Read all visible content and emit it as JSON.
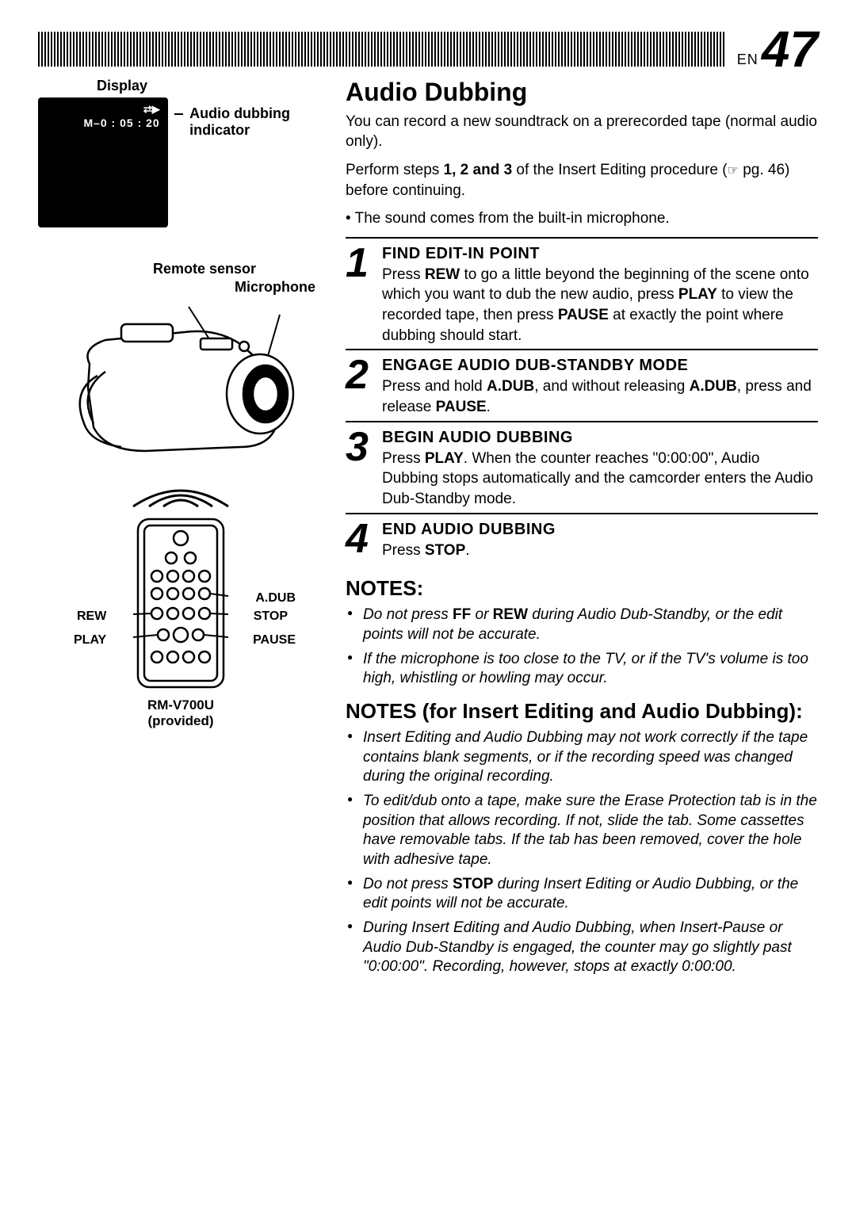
{
  "page": {
    "lang": "EN",
    "number": "47"
  },
  "left": {
    "display_label": "Display",
    "counter": "M–0 : 05 : 20",
    "dub_indicator_icons": "⇄▶",
    "dub_indicator_label": "Audio dubbing indicator",
    "remote_sensor_label": "Remote sensor",
    "microphone_label": "Microphone",
    "remote_labels": {
      "adub": "A.DUB",
      "stop": "STOP",
      "pause": "PAUSE",
      "rew": "REW",
      "play": "PLAY"
    },
    "remote_model": "RM-V700U",
    "remote_provided": "(provided)"
  },
  "right": {
    "title": "Audio Dubbing",
    "intro": "You can record a new soundtrack on a prerecorded tape (normal audio only).",
    "perform_prefix": "Perform steps ",
    "perform_steps": "1, 2 and 3",
    "perform_suffix": " of the Insert Editing procedure (",
    "perform_pg": " pg. 46) before continuing.",
    "bullet_sound": "• The sound comes from the built-in microphone.",
    "steps": [
      {
        "num": "1",
        "title": "FIND EDIT-IN POINT",
        "body_pre": "Press ",
        "b1": "REW",
        "body_mid1": " to go a little beyond the beginning of the scene onto which you want to dub the new audio, press ",
        "b2": "PLAY",
        "body_mid2": " to view the recorded tape, then press ",
        "b3": "PAUSE",
        "body_end": " at exactly the point where dubbing should start."
      },
      {
        "num": "2",
        "title": "ENGAGE AUDIO DUB-STANDBY MODE",
        "body_pre": "Press and hold ",
        "b1": "A.DUB",
        "body_mid1": ", and without releasing ",
        "b2": "A.DUB",
        "body_mid2": ", press and release ",
        "b3": "PAUSE",
        "body_end": "."
      },
      {
        "num": "3",
        "title": "BEGIN AUDIO DUBBING",
        "body_pre": "Press ",
        "b1": "PLAY",
        "body_mid1": ". When the counter reaches \"0:00:00\", Audio Dubbing stops automatically and the camcorder enters the Audio Dub-Standby mode.",
        "b2": "",
        "body_mid2": "",
        "b3": "",
        "body_end": ""
      },
      {
        "num": "4",
        "title": "END AUDIO DUBBING",
        "body_pre": "Press ",
        "b1": "STOP",
        "body_mid1": ".",
        "b2": "",
        "body_mid2": "",
        "b3": "",
        "body_end": ""
      }
    ],
    "notes_title": "NOTES:",
    "notes": [
      {
        "pre": "Do not press ",
        "b1": "FF",
        "mid": " or ",
        "b2": "REW",
        "post": " during Audio Dub-Standby, or the edit points will not be accurate."
      },
      {
        "pre": "If the microphone is too close to the TV, or if the TV's volume is too high, whistling or howling may occur.",
        "b1": "",
        "mid": "",
        "b2": "",
        "post": ""
      }
    ],
    "notes2_title": "NOTES (for Insert Editing and Audio Dubbing):",
    "notes2": [
      {
        "pre": "Insert Editing and Audio Dubbing may not work correctly if the tape contains blank segments, or if the recording speed was changed during the original recording.",
        "b1": "",
        "mid": "",
        "b2": "",
        "post": ""
      },
      {
        "pre": "To edit/dub onto a tape, make sure the Erase Protection tab is in the position that allows recording. If not, slide the tab. Some cassettes have removable tabs. If the tab has been removed, cover the hole with adhesive tape.",
        "b1": "",
        "mid": "",
        "b2": "",
        "post": ""
      },
      {
        "pre": "Do not press ",
        "b1": "STOP",
        "mid": " during Insert Editing or Audio Dubbing, or the edit points will not be accurate.",
        "b2": "",
        "post": ""
      },
      {
        "pre": "During Insert Editing and Audio Dubbing, when Insert-Pause or Audio Dub-Standby is engaged, the counter may go slightly past \"0:00:00\". Recording, however, stops at exactly 0:00:00.",
        "b1": "",
        "mid": "",
        "b2": "",
        "post": ""
      }
    ]
  },
  "style": {
    "page_bg": "#ffffff",
    "text_color": "#000000",
    "header_bar_pattern": "vertical-stripes",
    "title_fontsize": 32,
    "body_fontsize": 19,
    "stepnum_fontsize": 52,
    "stepnum_style": "italic-bold",
    "notes_style": "italic",
    "display_bg": "#000000",
    "display_fg": "#ffffff"
  }
}
